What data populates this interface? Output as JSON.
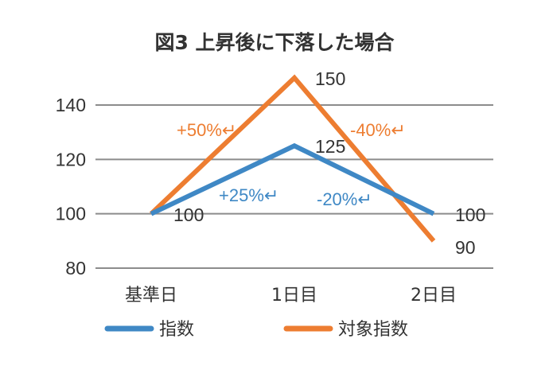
{
  "chart_data": {
    "type": "line",
    "title": "図3 上昇後に下落した場合",
    "categories": [
      "基準日",
      "1日目",
      "2日目"
    ],
    "ylim": [
      80,
      150
    ],
    "yticks": [
      "80",
      "100",
      "120",
      "140"
    ],
    "grid": true,
    "legend_position": "bottom",
    "series": [
      {
        "name": "指数",
        "color": "#3f88c5",
        "values": [
          100,
          125,
          100
        ],
        "point_labels": [
          "100",
          "125",
          "100"
        ],
        "change_labels": [
          "+25%↵",
          "-20%↵"
        ]
      },
      {
        "name": "対象指数",
        "color": "#ed7d31",
        "values": [
          100,
          150,
          90
        ],
        "point_labels": [
          "",
          "150",
          "90"
        ],
        "change_labels": [
          "+50%↵",
          "-40%↵"
        ]
      }
    ]
  }
}
